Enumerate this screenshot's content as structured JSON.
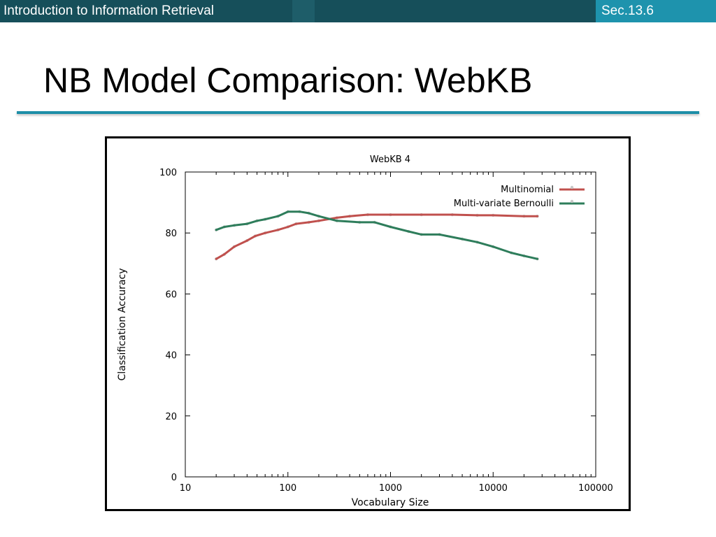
{
  "header": {
    "course_title": "Introduction to Information Retrieval",
    "section": "Sec.13.6"
  },
  "slide": {
    "title": "NB Model Comparison: WebKB"
  },
  "colors": {
    "header_bar": "#164f5a",
    "section_tab": "#1e93ad",
    "title_rule": "#1d8ea7",
    "multinomial": "#c0504d",
    "bernoulli": "#2e7d5b"
  },
  "chart_data": {
    "type": "line",
    "title": "WebKB 4",
    "xlabel": "Vocabulary Size",
    "ylabel": "Classification Accuracy",
    "x_scale": "log",
    "xlim": [
      10,
      100000
    ],
    "ylim": [
      0,
      100
    ],
    "x_ticks": [
      "10",
      "100",
      "1000",
      "10000",
      "100000"
    ],
    "x_tick_values": [
      10,
      100,
      1000,
      10000,
      100000
    ],
    "y_ticks": [
      "0",
      "20",
      "40",
      "60",
      "80",
      "100"
    ],
    "y_tick_values": [
      0,
      20,
      40,
      60,
      80,
      100
    ],
    "legend_position": "top-right",
    "series": [
      {
        "name": "Multinomial",
        "x": [
          20,
          24,
          30,
          40,
          48,
          60,
          80,
          100,
          120,
          160,
          200,
          300,
          400,
          600,
          1000,
          2000,
          4000,
          7000,
          10000,
          20000,
          27000
        ],
        "y": [
          71.5,
          73,
          75.5,
          77.5,
          79,
          80,
          81,
          82,
          83,
          83.5,
          84,
          85,
          85.5,
          86,
          86,
          86,
          86,
          85.8,
          85.8,
          85.5,
          85.5
        ]
      },
      {
        "name": "Multi-variate Bernoulli",
        "x": [
          20,
          24,
          30,
          40,
          50,
          60,
          80,
          100,
          130,
          160,
          200,
          300,
          500,
          700,
          1000,
          1500,
          2000,
          3000,
          5000,
          7000,
          10000,
          15000,
          20000,
          27000
        ],
        "y": [
          81,
          82,
          82.5,
          83,
          84,
          84.5,
          85.5,
          87,
          87,
          86.5,
          85.5,
          84,
          83.5,
          83.5,
          82,
          80.5,
          79.5,
          79.5,
          78,
          77,
          75.5,
          73.5,
          72.5,
          71.5
        ]
      }
    ]
  }
}
